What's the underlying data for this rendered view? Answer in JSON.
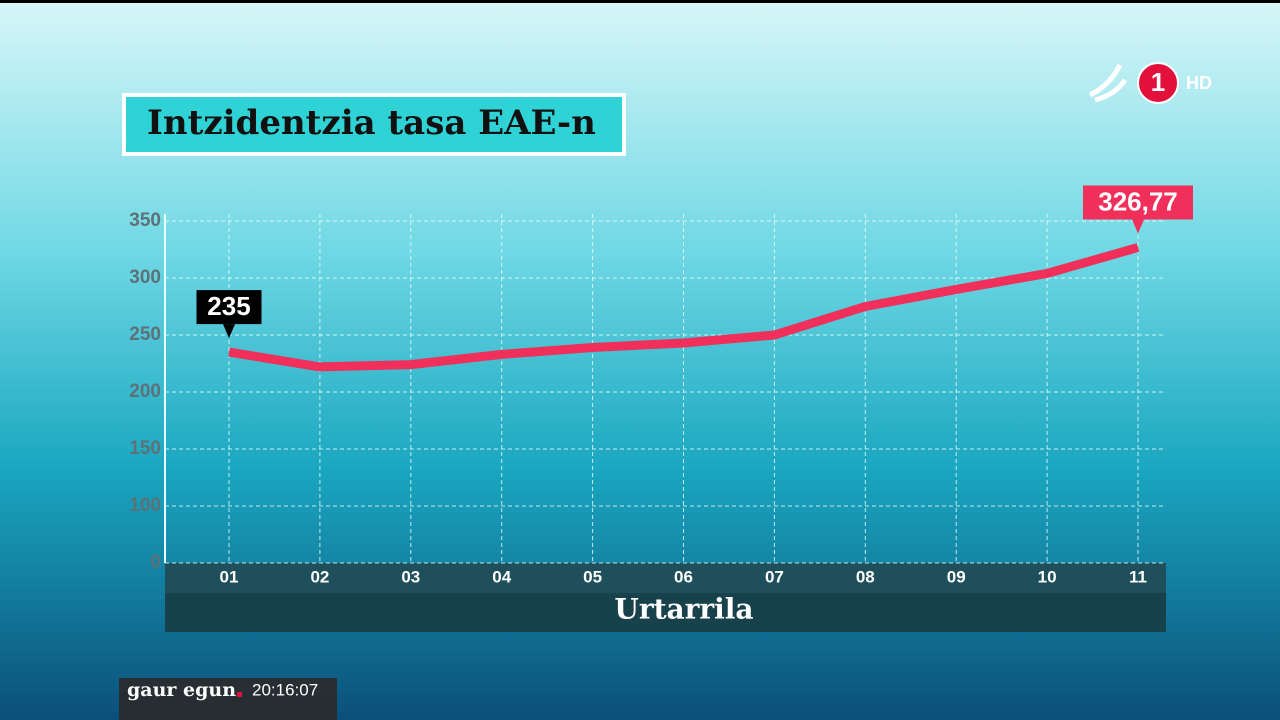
{
  "chart_data": {
    "type": "line",
    "title": "Intzidentzia tasa EAE-n",
    "x_label": "Urtarrila",
    "categories": [
      "01",
      "02",
      "03",
      "04",
      "05",
      "06",
      "07",
      "08",
      "09",
      "10",
      "11"
    ],
    "series": [
      {
        "color": "#f0305a",
        "values": [
          235,
          222,
          224,
          233,
          239,
          243,
          250,
          275,
          290,
          304,
          326.77
        ],
        "value_labels": [
          "235",
          null,
          null,
          null,
          null,
          null,
          null,
          null,
          null,
          null,
          "326,77"
        ],
        "value_label_colors": [
          "#000000",
          null,
          null,
          null,
          null,
          null,
          null,
          null,
          null,
          null,
          "#f0305a"
        ]
      }
    ],
    "ylim": [
      0,
      350
    ],
    "yticks": [
      0,
      100,
      150,
      200,
      250,
      300,
      350
    ],
    "axis_break": true,
    "grid": true
  },
  "overlay": {
    "channel": "1",
    "hd": "HD",
    "program": "gaur egun",
    "time": "20:16:07"
  }
}
